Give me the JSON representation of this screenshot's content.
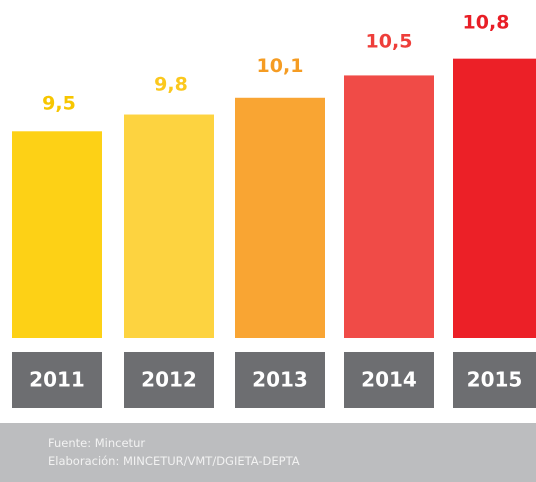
{
  "chart_data": {
    "type": "bar",
    "categories": [
      "2011",
      "2012",
      "2013",
      "2014",
      "2015"
    ],
    "values": [
      9.5,
      9.8,
      10.1,
      10.5,
      10.8
    ],
    "value_labels": [
      "9,5",
      "9,8",
      "10,1",
      "10,5",
      "10,8"
    ],
    "colors": [
      "#fdd116",
      "#fdd340",
      "#f9a533",
      "#f04b47",
      "#ec2027"
    ],
    "label_colors": [
      "#f7c600",
      "#fbc81e",
      "#f59c23",
      "#ee3e3a",
      "#e81e26"
    ],
    "ylim": [
      5.8,
      11.85
    ],
    "notes": [
      "Fuente: Mincetur",
      "Elaboración: MINCETUR/VMT/DGIETA-DEPTA"
    ]
  }
}
